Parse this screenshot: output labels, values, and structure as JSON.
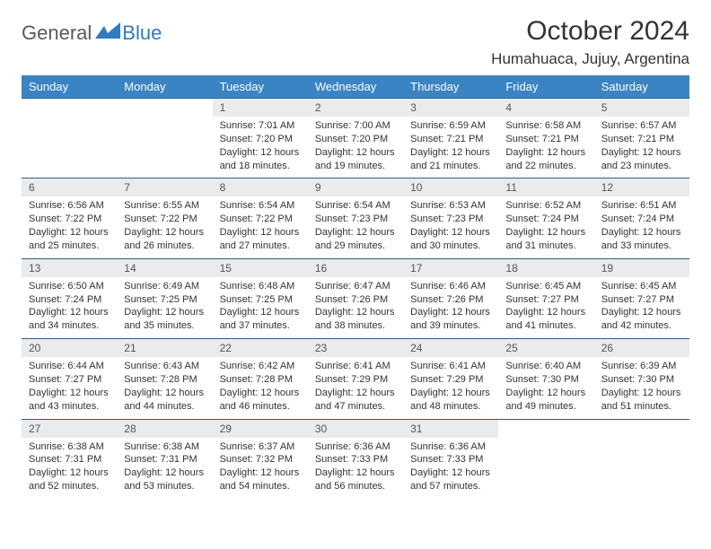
{
  "logo": {
    "part1": "General",
    "part2": "Blue"
  },
  "title": "October 2024",
  "location": "Humahuaca, Jujuy, Argentina",
  "colors": {
    "header_bg": "#3a84c4",
    "header_fg": "#ffffff",
    "daynum_bg": "#e9ebed",
    "row_border": "#2f5d88",
    "logo_gray": "#5a5a5a",
    "logo_blue": "#2f7bbf"
  },
  "day_headers": [
    "Sunday",
    "Monday",
    "Tuesday",
    "Wednesday",
    "Thursday",
    "Friday",
    "Saturday"
  ],
  "weeks": [
    [
      null,
      null,
      {
        "n": "1",
        "sr": "7:01 AM",
        "ss": "7:20 PM",
        "dl": "12 hours and 18 minutes."
      },
      {
        "n": "2",
        "sr": "7:00 AM",
        "ss": "7:20 PM",
        "dl": "12 hours and 19 minutes."
      },
      {
        "n": "3",
        "sr": "6:59 AM",
        "ss": "7:21 PM",
        "dl": "12 hours and 21 minutes."
      },
      {
        "n": "4",
        "sr": "6:58 AM",
        "ss": "7:21 PM",
        "dl": "12 hours and 22 minutes."
      },
      {
        "n": "5",
        "sr": "6:57 AM",
        "ss": "7:21 PM",
        "dl": "12 hours and 23 minutes."
      }
    ],
    [
      {
        "n": "6",
        "sr": "6:56 AM",
        "ss": "7:22 PM",
        "dl": "12 hours and 25 minutes."
      },
      {
        "n": "7",
        "sr": "6:55 AM",
        "ss": "7:22 PM",
        "dl": "12 hours and 26 minutes."
      },
      {
        "n": "8",
        "sr": "6:54 AM",
        "ss": "7:22 PM",
        "dl": "12 hours and 27 minutes."
      },
      {
        "n": "9",
        "sr": "6:54 AM",
        "ss": "7:23 PM",
        "dl": "12 hours and 29 minutes."
      },
      {
        "n": "10",
        "sr": "6:53 AM",
        "ss": "7:23 PM",
        "dl": "12 hours and 30 minutes."
      },
      {
        "n": "11",
        "sr": "6:52 AM",
        "ss": "7:24 PM",
        "dl": "12 hours and 31 minutes."
      },
      {
        "n": "12",
        "sr": "6:51 AM",
        "ss": "7:24 PM",
        "dl": "12 hours and 33 minutes."
      }
    ],
    [
      {
        "n": "13",
        "sr": "6:50 AM",
        "ss": "7:24 PM",
        "dl": "12 hours and 34 minutes."
      },
      {
        "n": "14",
        "sr": "6:49 AM",
        "ss": "7:25 PM",
        "dl": "12 hours and 35 minutes."
      },
      {
        "n": "15",
        "sr": "6:48 AM",
        "ss": "7:25 PM",
        "dl": "12 hours and 37 minutes."
      },
      {
        "n": "16",
        "sr": "6:47 AM",
        "ss": "7:26 PM",
        "dl": "12 hours and 38 minutes."
      },
      {
        "n": "17",
        "sr": "6:46 AM",
        "ss": "7:26 PM",
        "dl": "12 hours and 39 minutes."
      },
      {
        "n": "18",
        "sr": "6:45 AM",
        "ss": "7:27 PM",
        "dl": "12 hours and 41 minutes."
      },
      {
        "n": "19",
        "sr": "6:45 AM",
        "ss": "7:27 PM",
        "dl": "12 hours and 42 minutes."
      }
    ],
    [
      {
        "n": "20",
        "sr": "6:44 AM",
        "ss": "7:27 PM",
        "dl": "12 hours and 43 minutes."
      },
      {
        "n": "21",
        "sr": "6:43 AM",
        "ss": "7:28 PM",
        "dl": "12 hours and 44 minutes."
      },
      {
        "n": "22",
        "sr": "6:42 AM",
        "ss": "7:28 PM",
        "dl": "12 hours and 46 minutes."
      },
      {
        "n": "23",
        "sr": "6:41 AM",
        "ss": "7:29 PM",
        "dl": "12 hours and 47 minutes."
      },
      {
        "n": "24",
        "sr": "6:41 AM",
        "ss": "7:29 PM",
        "dl": "12 hours and 48 minutes."
      },
      {
        "n": "25",
        "sr": "6:40 AM",
        "ss": "7:30 PM",
        "dl": "12 hours and 49 minutes."
      },
      {
        "n": "26",
        "sr": "6:39 AM",
        "ss": "7:30 PM",
        "dl": "12 hours and 51 minutes."
      }
    ],
    [
      {
        "n": "27",
        "sr": "6:38 AM",
        "ss": "7:31 PM",
        "dl": "12 hours and 52 minutes."
      },
      {
        "n": "28",
        "sr": "6:38 AM",
        "ss": "7:31 PM",
        "dl": "12 hours and 53 minutes."
      },
      {
        "n": "29",
        "sr": "6:37 AM",
        "ss": "7:32 PM",
        "dl": "12 hours and 54 minutes."
      },
      {
        "n": "30",
        "sr": "6:36 AM",
        "ss": "7:33 PM",
        "dl": "12 hours and 56 minutes."
      },
      {
        "n": "31",
        "sr": "6:36 AM",
        "ss": "7:33 PM",
        "dl": "12 hours and 57 minutes."
      },
      null,
      null
    ]
  ],
  "labels": {
    "sunrise": "Sunrise:",
    "sunset": "Sunset:",
    "daylight": "Daylight:"
  }
}
